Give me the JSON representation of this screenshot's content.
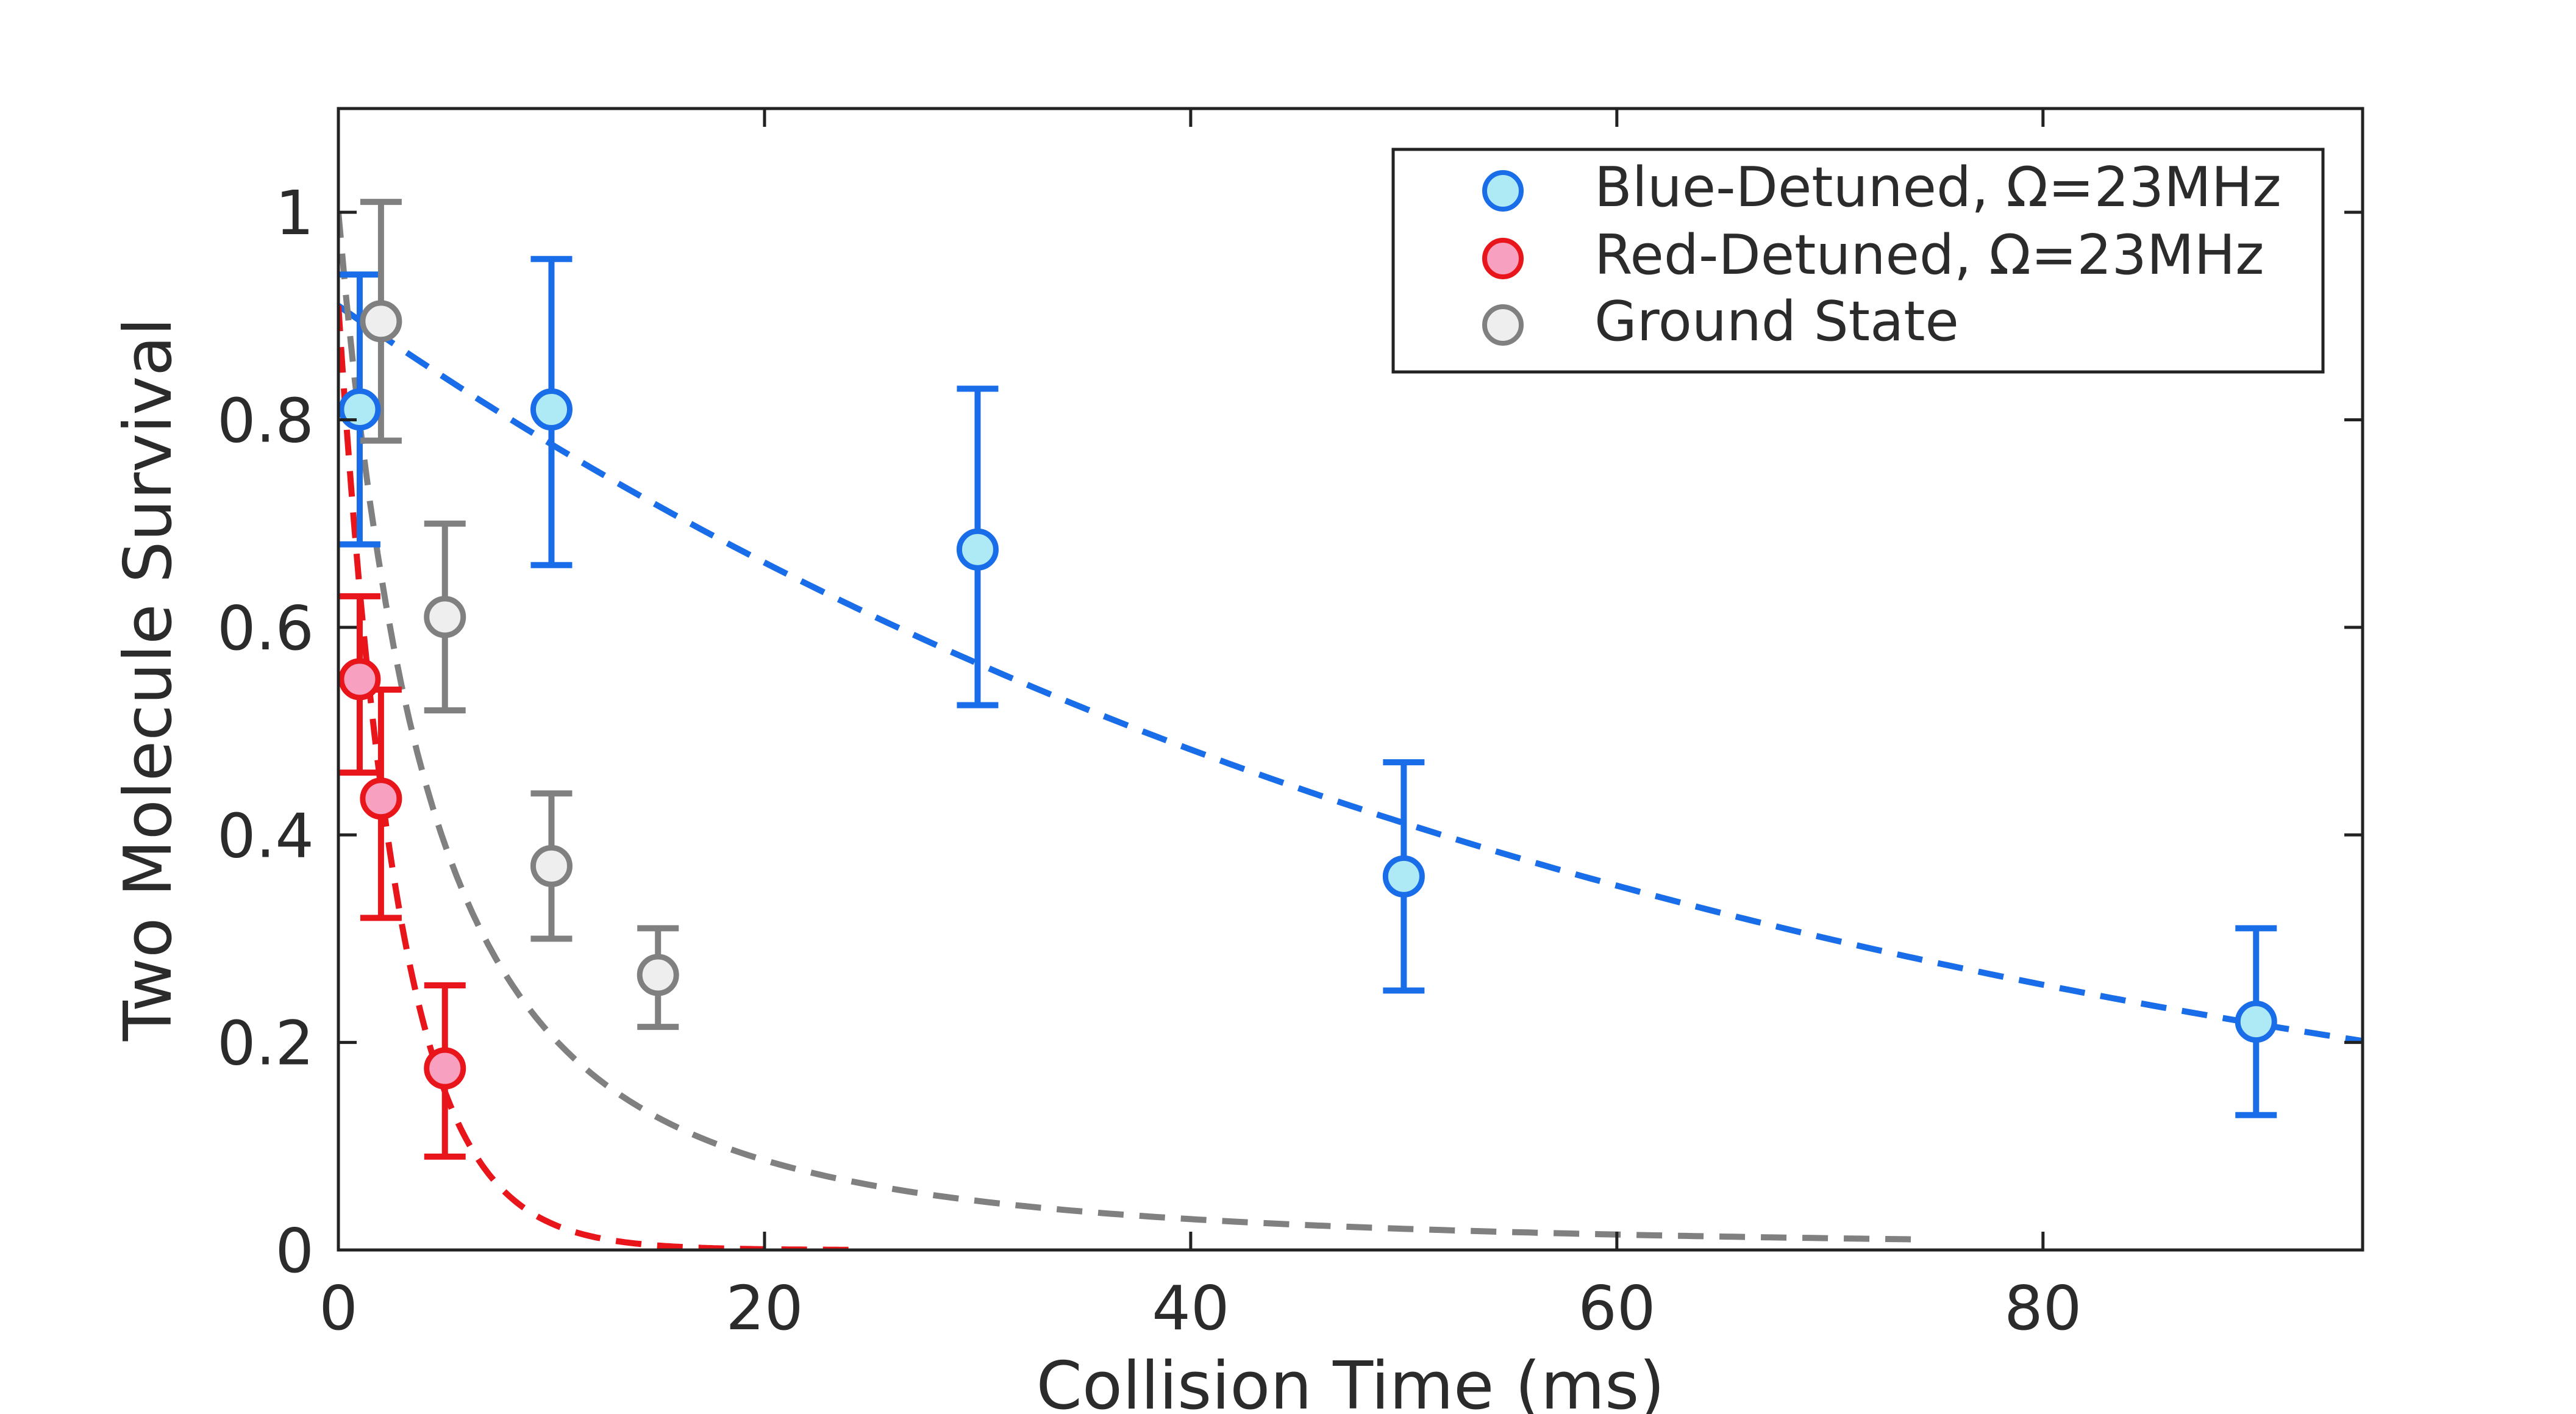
{
  "chart_data": {
    "type": "scatter",
    "title": "",
    "xlabel": "Collision Time (ms)",
    "ylabel": "Two Molecule Survival",
    "xlim": [
      0,
      95
    ],
    "ylim": [
      0,
      1.1
    ],
    "xticks": [
      {
        "value": 0,
        "label": "0"
      },
      {
        "value": 20,
        "label": "20"
      },
      {
        "value": 40,
        "label": "40"
      },
      {
        "value": 60,
        "label": "60"
      },
      {
        "value": 80,
        "label": "80"
      }
    ],
    "yticks": [
      {
        "value": 0,
        "label": "0"
      },
      {
        "value": 0.2,
        "label": "0.2"
      },
      {
        "value": 0.4,
        "label": "0.4"
      },
      {
        "value": 0.6,
        "label": "0.6"
      },
      {
        "value": 0.8,
        "label": "0.8"
      },
      {
        "value": 1,
        "label": "1"
      }
    ],
    "legend_position": "top-right",
    "series": [
      {
        "name": "Blue-Detuned, Ω=23MHz",
        "color": "#1a6de8",
        "fill": "#aeeaf5",
        "points": [
          {
            "x": 1,
            "y": 0.81,
            "lo": 0.68,
            "hi": 0.94
          },
          {
            "x": 10,
            "y": 0.81,
            "lo": 0.66,
            "hi": 0.955
          },
          {
            "x": 30,
            "y": 0.675,
            "lo": 0.525,
            "hi": 0.83
          },
          {
            "x": 50,
            "y": 0.36,
            "lo": 0.25,
            "hi": 0.47
          },
          {
            "x": 90,
            "y": 0.22,
            "lo": 0.13,
            "hi": 0.31
          }
        ],
        "fit": {
          "model": "exponential",
          "amplitude": 0.91,
          "tau_ms": 63,
          "x_range": [
            0,
            95
          ]
        }
      },
      {
        "name": "Red-Detuned, Ω=23MHz",
        "color": "#e8151b",
        "fill": "#f8a0c0",
        "points": [
          {
            "x": 1,
            "y": 0.55,
            "lo": 0.46,
            "hi": 0.63
          },
          {
            "x": 2,
            "y": 0.435,
            "lo": 0.32,
            "hi": 0.54
          },
          {
            "x": 5,
            "y": 0.175,
            "lo": 0.09,
            "hi": 0.255
          }
        ],
        "fit": {
          "model": "exponential",
          "amplitude": 0.91,
          "tau_ms": 2.8,
          "x_range": [
            0,
            24
          ]
        }
      },
      {
        "name": "Ground State",
        "color": "#808080",
        "fill": "#eeeeee",
        "points": [
          {
            "x": 2,
            "y": 0.895,
            "lo": 0.78,
            "hi": 1.01
          },
          {
            "x": 5,
            "y": 0.61,
            "lo": 0.52,
            "hi": 0.7
          },
          {
            "x": 10,
            "y": 0.37,
            "lo": 0.3,
            "hi": 0.44
          },
          {
            "x": 15,
            "y": 0.265,
            "lo": 0.215,
            "hi": 0.31
          }
        ],
        "fit": {
          "model": "two-body",
          "amplitude": 1.0,
          "k": 0.12,
          "x_range": [
            0,
            74
          ]
        }
      }
    ]
  }
}
